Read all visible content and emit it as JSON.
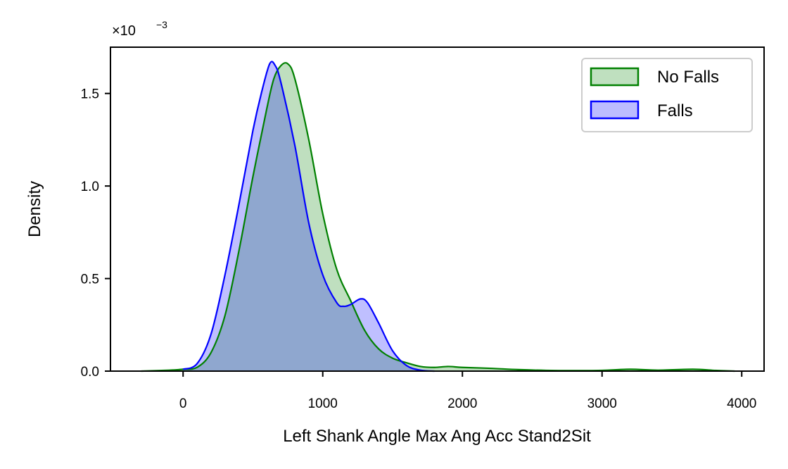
{
  "chart_data": {
    "type": "area",
    "xlabel": "Left Shank Angle Max Ang Acc Stand2Sit",
    "ylabel": "Density",
    "y_scale_label": "×10",
    "y_scale_exponent": "−3",
    "xlim": [
      -520,
      4160
    ],
    "ylim": [
      0,
      0.00175
    ],
    "x_ticks": [
      0,
      1000,
      2000,
      3000,
      4000
    ],
    "x_tick_labels": [
      "0",
      "1000",
      "2000",
      "3000",
      "4000"
    ],
    "y_ticks": [
      0,
      0.0005,
      0.001,
      0.0015
    ],
    "y_tick_labels": [
      "0.0",
      "0.5",
      "1.0",
      "1.5"
    ],
    "legend_position": "top-right",
    "grid": false,
    "series": [
      {
        "name": "No Falls",
        "color": "#008000",
        "fill": "#bfe0bf",
        "points": [
          [
            -300,
            0
          ],
          [
            -100,
            5e-06
          ],
          [
            0,
            1e-05
          ],
          [
            100,
            2e-05
          ],
          [
            200,
            0.0001
          ],
          [
            300,
            0.0003
          ],
          [
            400,
            0.00065
          ],
          [
            500,
            0.00105
          ],
          [
            600,
            0.00142
          ],
          [
            650,
            0.00158
          ],
          [
            700,
            0.00165
          ],
          [
            750,
            0.00166
          ],
          [
            800,
            0.00158
          ],
          [
            900,
            0.00125
          ],
          [
            1000,
            0.00085
          ],
          [
            1100,
            0.00055
          ],
          [
            1200,
            0.00038
          ],
          [
            1300,
            0.00022
          ],
          [
            1400,
            0.00012
          ],
          [
            1500,
            7e-05
          ],
          [
            1600,
            4.5e-05
          ],
          [
            1700,
            2.5e-05
          ],
          [
            1800,
            2e-05
          ],
          [
            1900,
            2.5e-05
          ],
          [
            2000,
            2e-05
          ],
          [
            2200,
            1.5e-05
          ],
          [
            2400,
            8e-06
          ],
          [
            2600,
            4e-06
          ],
          [
            2800,
            3e-06
          ],
          [
            3000,
            4e-06
          ],
          [
            3200,
            1e-05
          ],
          [
            3400,
            5e-06
          ],
          [
            3650,
            1e-05
          ],
          [
            3800,
            4e-06
          ],
          [
            3950,
            0
          ]
        ]
      },
      {
        "name": "Falls",
        "color": "#0000ff",
        "fill": "#bcbcff",
        "points": [
          [
            0,
            1e-05
          ],
          [
            100,
            4e-05
          ],
          [
            200,
            0.0002
          ],
          [
            300,
            0.00052
          ],
          [
            400,
            0.0009
          ],
          [
            500,
            0.0013
          ],
          [
            560,
            0.0015
          ],
          [
            620,
            0.00166
          ],
          [
            660,
            0.00165
          ],
          [
            700,
            0.00156
          ],
          [
            800,
            0.00122
          ],
          [
            900,
            0.0008
          ],
          [
            1000,
            0.00052
          ],
          [
            1100,
            0.00037
          ],
          [
            1150,
            0.00035
          ],
          [
            1200,
            0.00036
          ],
          [
            1270,
            0.00039
          ],
          [
            1320,
            0.00037
          ],
          [
            1400,
            0.00026
          ],
          [
            1500,
            0.00011
          ],
          [
            1600,
            3e-05
          ],
          [
            1700,
            5e-06
          ],
          [
            1800,
            0
          ]
        ]
      }
    ]
  }
}
